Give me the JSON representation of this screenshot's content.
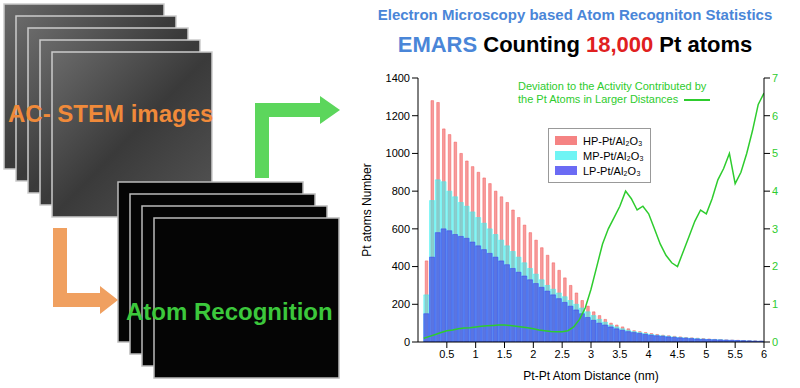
{
  "chart_data": {
    "type": "bar",
    "title": "Electron Microscopy based Atom Recogniton Statistics",
    "subtitle": "EMARS Counting 18,000 Pt atoms",
    "annotations": [
      "AC- STEM images",
      "Atom Recognition"
    ],
    "x_label": "Pt-Pt Atom Distance (nm)",
    "y_label": "Pt atoms Number",
    "bins": [
      0,
      0.1,
      0.2,
      0.3,
      0.4,
      0.5,
      0.6,
      0.7,
      0.8,
      0.9,
      1.0,
      1.1,
      1.2,
      1.3,
      1.4,
      1.5,
      1.6,
      1.7,
      1.8,
      1.9,
      2.0,
      2.1,
      2.2,
      2.3,
      2.4,
      2.5,
      2.6,
      2.7,
      2.8,
      2.9,
      3.0,
      3.1,
      3.2,
      3.3,
      3.4,
      3.5,
      3.6,
      3.7,
      3.8,
      3.9,
      4.0,
      4.1,
      4.2,
      4.3,
      4.4,
      4.5,
      4.6,
      4.7,
      4.8,
      4.9,
      5.0,
      5.1,
      5.2,
      5.3,
      5.4,
      5.5,
      5.6,
      5.7,
      5.8,
      5.9,
      6.0
    ],
    "series": [
      {
        "name": "HP-Pt/Al₂O₃",
        "color": "#f25a5a",
        "values": [
          0,
          430,
          1280,
          1270,
          1130,
          1100,
          1060,
          1000,
          960,
          930,
          900,
          870,
          840,
          800,
          770,
          740,
          700,
          660,
          620,
          580,
          540,
          500,
          460,
          420,
          380,
          340,
          300,
          260,
          220,
          190,
          160,
          140,
          120,
          100,
          90,
          80,
          70,
          60,
          55,
          50,
          45,
          40,
          36,
          33,
          30,
          27,
          24,
          22,
          20,
          18,
          16,
          14,
          12,
          11,
          10,
          9,
          8,
          7,
          6,
          5
        ]
      },
      {
        "name": "MP-Pt/Al₂O₃",
        "color": "#3ff0f0",
        "values": [
          0,
          250,
          750,
          860,
          850,
          800,
          770,
          740,
          720,
          690,
          660,
          630,
          600,
          570,
          540,
          510,
          480,
          450,
          420,
          390,
          360,
          330,
          300,
          280,
          260,
          240,
          220,
          200,
          180,
          160,
          140,
          120,
          105,
          90,
          80,
          70,
          62,
          55,
          50,
          45,
          40,
          36,
          33,
          30,
          27,
          24,
          22,
          20,
          18,
          16,
          14,
          13,
          12,
          10,
          9,
          8,
          7,
          6,
          5,
          4
        ]
      },
      {
        "name": "LP-Pt/Al₂O₃",
        "color": "#3a3af0",
        "values": [
          0,
          150,
          450,
          580,
          600,
          590,
          570,
          560,
          550,
          530,
          510,
          490,
          470,
          450,
          430,
          410,
          390,
          370,
          350,
          330,
          310,
          290,
          270,
          250,
          230,
          210,
          190,
          170,
          150,
          130,
          115,
          100,
          90,
          80,
          70,
          62,
          55,
          50,
          45,
          40,
          36,
          33,
          30,
          27,
          24,
          22,
          20,
          18,
          16,
          14,
          13,
          12,
          11,
          10,
          9,
          8,
          7,
          6,
          5,
          4
        ]
      },
      {
        "name": "Deviation to the Activity Contributed by the Pt Atoms in Larger Distances",
        "type": "line",
        "axis": "y2",
        "color": "#2ecc2e",
        "x": [
          0.1,
          0.2,
          0.3,
          0.4,
          0.5,
          0.6,
          0.7,
          0.8,
          0.9,
          1.0,
          1.1,
          1.2,
          1.3,
          1.4,
          1.5,
          1.6,
          1.7,
          1.8,
          1.9,
          2.0,
          2.1,
          2.2,
          2.3,
          2.4,
          2.5,
          2.6,
          2.7,
          2.8,
          2.9,
          3.0,
          3.1,
          3.2,
          3.3,
          3.4,
          3.5,
          3.6,
          3.7,
          3.8,
          3.9,
          4.0,
          4.1,
          4.2,
          4.3,
          4.4,
          4.5,
          4.6,
          4.7,
          4.8,
          4.9,
          5.0,
          5.1,
          5.2,
          5.3,
          5.4,
          5.5,
          5.6,
          5.7,
          5.8,
          5.9,
          6.0
        ],
        "values": [
          0.1,
          0.15,
          0.2,
          0.25,
          0.3,
          0.32,
          0.35,
          0.37,
          0.38,
          0.4,
          0.42,
          0.43,
          0.44,
          0.45,
          0.45,
          0.44,
          0.42,
          0.4,
          0.38,
          0.35,
          0.32,
          0.3,
          0.28,
          0.27,
          0.27,
          0.3,
          0.4,
          0.6,
          0.9,
          1.4,
          2.0,
          2.6,
          3.0,
          3.3,
          3.6,
          4.0,
          3.8,
          3.5,
          3.6,
          3.4,
          3.0,
          2.6,
          2.3,
          2.1,
          2.0,
          2.4,
          2.8,
          3.2,
          3.5,
          3.4,
          3.8,
          4.3,
          4.6,
          5.0,
          4.2,
          4.5,
          5.0,
          5.6,
          6.3,
          6.6
        ]
      }
    ],
    "xlim": [
      0,
      6
    ],
    "xticks": [
      0.5,
      1,
      1.5,
      2,
      2.5,
      3,
      3.5,
      4,
      4.5,
      5,
      5.5,
      6
    ],
    "ylim": [
      0,
      1400
    ],
    "yticks": [
      0,
      200,
      400,
      600,
      800,
      1000,
      1200,
      1400
    ],
    "y2lim": [
      0,
      7
    ],
    "y2ticks": [
      0,
      1,
      2,
      3,
      4,
      5,
      6,
      7
    ],
    "grid": false,
    "legend": "upper center"
  }
}
